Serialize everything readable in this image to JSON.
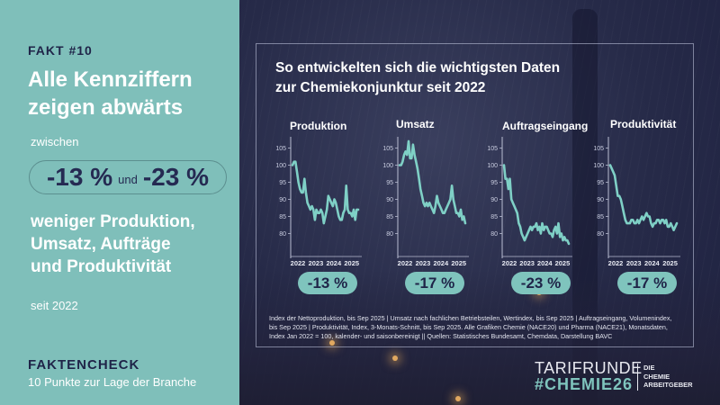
{
  "left_panel": {
    "fakt_label": "FAKT #10",
    "headline_line1": "Alle Kennziffern",
    "headline_line2": "zeigen abwärts",
    "between_label": "zwischen",
    "range_low": "-13 %",
    "range_und": "und",
    "range_high": "-23 %",
    "sub_line1": "weniger Produktion,",
    "sub_line2": "Umsatz, Aufträge",
    "sub_line3": "und Produktivität",
    "since_label": "seit 2022",
    "series_title": "FAKTENCHECK",
    "series_subtitle": "10 Punkte zur Lage der Branche"
  },
  "colors": {
    "teal_panel": "#7fbfba",
    "navy_text": "#1f2448",
    "line_color": "#7fd0c6",
    "badge_bg": "#7fc4bd"
  },
  "main": {
    "title_line1": "So entwickelten sich die wichtigsten Daten",
    "title_line2": "zur Chemiekonjunktur seit 2022",
    "footnote_line1": "Index der Nettoproduktion, bis Sep 2025 | Umsatz nach fachlichen Betriebsteilen, Wertindex, bis Sep 2025 | Auftragseingang, Volumenindex,",
    "footnote_line2": "bis Sep 2025 | Produktivität, Index, 3-Monats-Schnitt, bis Sep 2025. Alle Grafiken Chemie (NACE20) und Pharma (NACE21), Monatsdaten,",
    "footnote_line3": "Index Jan 2022 = 100, kalender- und saisonbereinigt || Quellen: Statistisches Bundesamt, Chemdata, Darstellung BAVC"
  },
  "logo": {
    "line1": "TARIFRUNDE",
    "line2": "#CHEMIE26",
    "org_line1": "DIE",
    "org_line2": "CHEMIE",
    "org_line3": "ARBEITGEBER"
  },
  "chart_data": [
    {
      "type": "line",
      "title": "Produktion",
      "badge": "-13 %",
      "yticks": [
        "105",
        "100",
        "95",
        "90",
        "85",
        "80"
      ],
      "ylim": [
        76,
        107
      ],
      "xticks": [
        "2022",
        "2023",
        "2024",
        "2025"
      ],
      "x_start": "2022-01",
      "values": [
        100,
        101,
        101,
        98,
        95,
        93,
        92,
        92,
        96,
        92,
        89,
        88,
        87,
        88,
        87,
        84,
        87,
        86,
        86,
        87,
        86,
        83,
        85,
        87,
        91,
        90,
        89,
        88,
        90,
        89,
        87,
        85,
        84,
        84,
        86,
        87,
        94,
        87,
        86,
        86,
        85,
        87,
        84,
        87,
        87
      ]
    },
    {
      "type": "line",
      "title": "Umsatz",
      "badge": "-17 %",
      "yticks": [
        "105",
        "100",
        "95",
        "90",
        "85",
        "80"
      ],
      "ylim": [
        76,
        107
      ],
      "xticks": [
        "2022",
        "2023",
        "2024",
        "2025"
      ],
      "x_start": "2022-01",
      "values": [
        100,
        100,
        101,
        103,
        104,
        103,
        107,
        102,
        102,
        106,
        103,
        101,
        99,
        96,
        93,
        91,
        89,
        88,
        89,
        88,
        89,
        88,
        87,
        86,
        88,
        91,
        89,
        88,
        87,
        86,
        86,
        87,
        88,
        89,
        90,
        94,
        90,
        88,
        86,
        86,
        85,
        87,
        84,
        85,
        83
      ]
    },
    {
      "type": "line",
      "title": "Auftragseingang",
      "badge": "-23 %",
      "yticks": [
        "105",
        "100",
        "95",
        "90",
        "85",
        "80"
      ],
      "ylim": [
        76,
        107
      ],
      "xticks": [
        "2022",
        "2023",
        "2024",
        "2025"
      ],
      "x_start": "2022-01",
      "values": [
        100,
        96,
        96,
        93,
        96,
        90,
        89,
        88,
        87,
        86,
        83,
        82,
        80,
        79,
        78,
        79,
        80,
        81,
        82,
        81,
        82,
        82,
        83,
        81,
        82,
        80,
        83,
        81,
        82,
        82,
        81,
        80,
        80,
        79,
        81,
        82,
        80,
        83,
        79,
        80,
        78,
        79,
        78,
        78,
        77
      ]
    },
    {
      "type": "line",
      "title": "Produktivität",
      "badge": "-17 %",
      "yticks": [
        "105",
        "100",
        "95",
        "90",
        "85",
        "80"
      ],
      "ylim": [
        76,
        107
      ],
      "xticks": [
        "2022",
        "2023",
        "2024",
        "2025"
      ],
      "x_start": "2022-01",
      "values": [
        100,
        99,
        98,
        97,
        94,
        91,
        91,
        90,
        88,
        86,
        84,
        83,
        83,
        83,
        84,
        84,
        83,
        83,
        84,
        83,
        84,
        85,
        84,
        85,
        86,
        85,
        85,
        83,
        82,
        83,
        83,
        84,
        84,
        83,
        84,
        84,
        83,
        84,
        82,
        82,
        83,
        82,
        81,
        82,
        83
      ]
    }
  ]
}
